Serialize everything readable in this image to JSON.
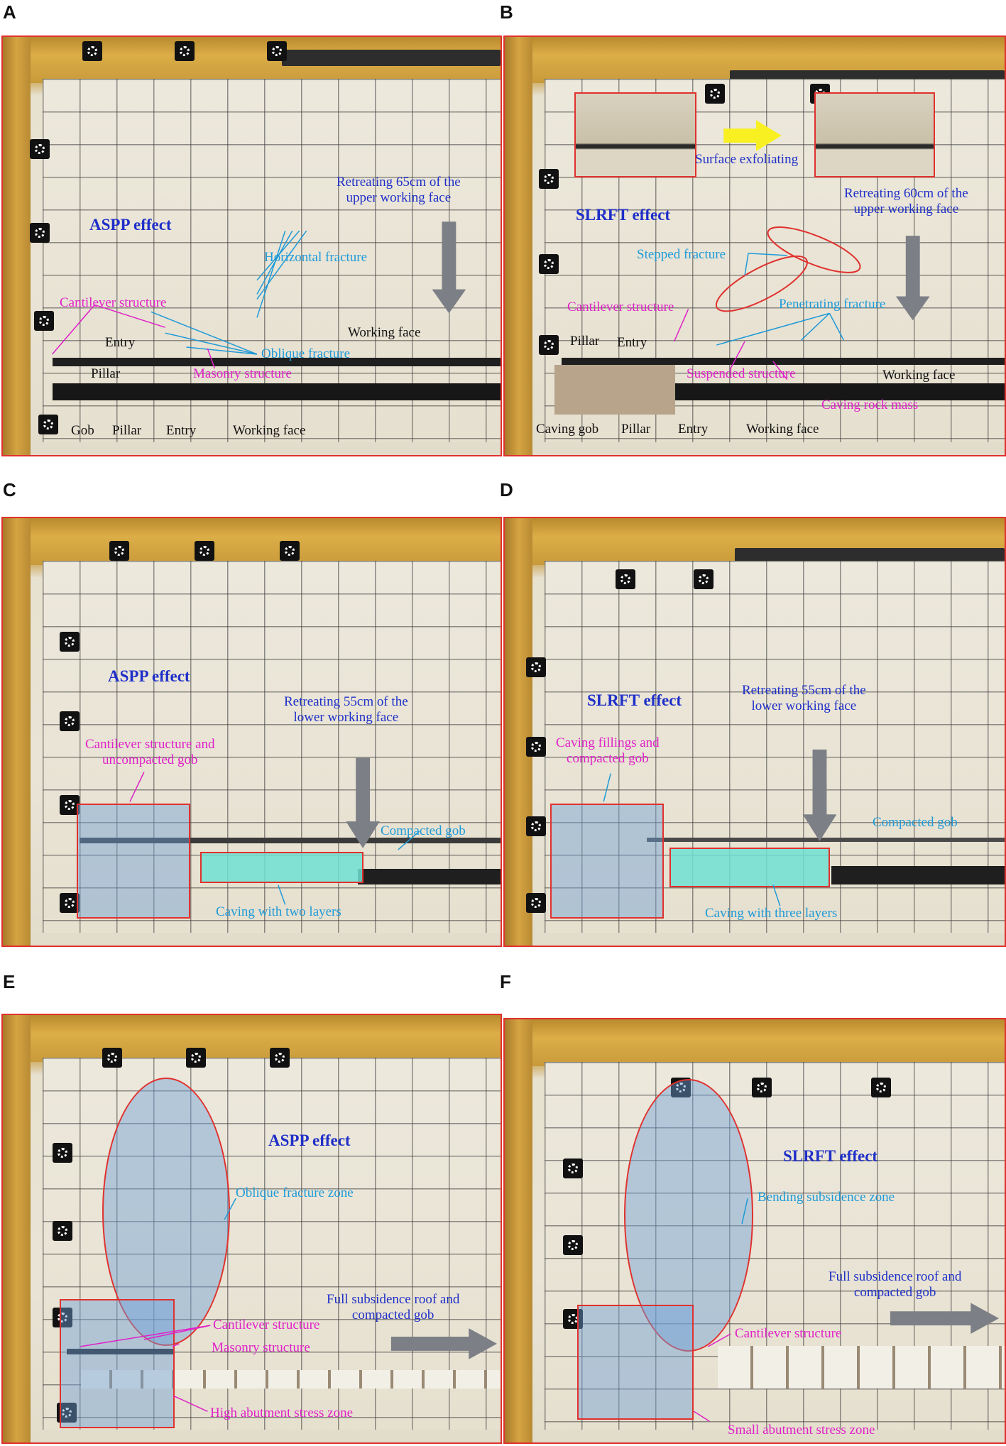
{
  "panels": {
    "A": {
      "letter": "A",
      "effect": "ASPP effect",
      "retreat": "Retreating 65cm of the\nupper working face",
      "labels": {
        "horizontal_fracture": "Horizontal fracture",
        "cantilever_structure": "Cantilever structure",
        "entry_upper": "Entry",
        "working_face_upper": "Working face",
        "oblique_fracture": "Oblique fracture",
        "pillar_upper": "Pillar",
        "masonry_structure": "Masonry structure",
        "gob": "Gob",
        "pillar_lower": "Pillar",
        "entry_lower": "Entry",
        "working_face_lower": "Working face"
      }
    },
    "B": {
      "letter": "B",
      "effect": "SLRFT effect",
      "surface": "Surface exfoliating",
      "retreat": "Retreating 60cm of the\nupper working face",
      "labels": {
        "stepped_fracture": "Stepped fracture",
        "cantilever_structure": "Cantilever structure",
        "penetrating_fracture": "Penetrating fracture",
        "pillar_upper": "Pillar",
        "entry_upper": "Entry",
        "suspended_structure": "Suspended structure",
        "working_face_upper": "Working face",
        "caving_rock_mass": "Caving rock mass",
        "caving_gob": "Caving gob",
        "pillar_lower": "Pillar",
        "entry_lower": "Entry",
        "working_face_lower": "Working face"
      }
    },
    "C": {
      "letter": "C",
      "effect": "ASPP effect",
      "retreat": "Retreating 55cm of the\nlower working face",
      "labels": {
        "cantilever_gob": "Cantilever structure and\nuncompacted gob",
        "compacted_gob": "Compacted gob",
        "caving_layers": "Caving with two layers"
      }
    },
    "D": {
      "letter": "D",
      "effect": "SLRFT effect",
      "retreat": "Retreating 55cm of the\nlower working face",
      "labels": {
        "caving_fillings": "Caving fillings and\ncompacted gob",
        "compacted_gob": "Compacted gob",
        "caving_layers": "Caving with three layers"
      }
    },
    "E": {
      "letter": "E",
      "effect": "ASPP effect",
      "labels": {
        "zone": "Oblique fracture zone",
        "full_subsidence": "Full subsidence roof and\ncompacted gob",
        "cantilever_structure": "Cantilever structure",
        "masonry_structure": "Masonry structure",
        "abutment": "High abutment stress zone"
      }
    },
    "F": {
      "letter": "F",
      "effect": "SLRFT effect",
      "labels": {
        "zone": "Bending subsidence zone",
        "full_subsidence": "Full subsidence roof and\ncompacted gob",
        "cantilever_structure": "Cantilever structure",
        "abutment": "Small abutment stress zone"
      }
    }
  },
  "colors": {
    "frame_red": "#e0312e",
    "label_magenta": "#e020c8",
    "label_cyan": "#1e9ad8",
    "label_blue": "#1f2fc8",
    "arrow_gray": "#7d7f86",
    "arrow_yellow": "#f8f020"
  }
}
